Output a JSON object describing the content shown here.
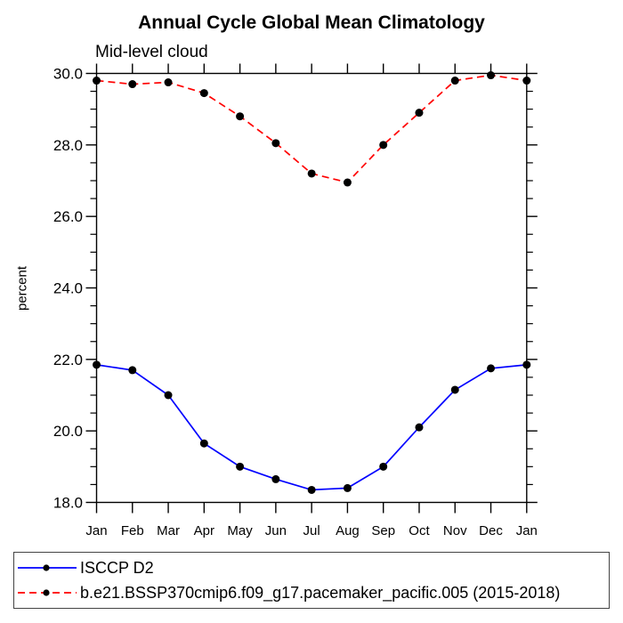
{
  "chart_data": {
    "type": "line",
    "title": "Annual Cycle Global Mean Climatology",
    "subtitle": "Mid-level cloud",
    "xlabel": "",
    "ylabel": "percent",
    "categories": [
      "Jan",
      "Feb",
      "Mar",
      "Apr",
      "May",
      "Jun",
      "Jul",
      "Aug",
      "Sep",
      "Oct",
      "Nov",
      "Dec",
      "Jan"
    ],
    "ylim": [
      18.0,
      30.0
    ],
    "ytick_major_values": [
      18,
      20,
      22,
      24,
      26,
      28,
      30
    ],
    "ytick_major_labels": [
      "18.0",
      "20.0",
      "22.0",
      "24.0",
      "26.0",
      "28.0",
      "30.0"
    ],
    "ytick_minor_step": 0.5,
    "grid": false,
    "legend_position": "bottom",
    "frame_color": "#000000",
    "marker_shape": "filled-circle",
    "series": [
      {
        "name": "ISCCP D2",
        "color": "#0000ff",
        "line_style": "solid",
        "marker_color": "#000000",
        "values": [
          21.85,
          21.7,
          21.0,
          19.65,
          19.0,
          18.65,
          18.35,
          18.4,
          19.0,
          20.1,
          21.15,
          21.75,
          21.85
        ]
      },
      {
        "name": "b.e21.BSSP370cmip6.f09_g17.pacemaker_pacific.005 (2015-2018)",
        "color": "#ff0000",
        "line_style": "dashed",
        "marker_color": "#000000",
        "values": [
          29.8,
          29.7,
          29.75,
          29.45,
          28.8,
          28.05,
          27.2,
          26.95,
          28.0,
          28.9,
          29.8,
          29.95,
          29.8
        ]
      }
    ]
  }
}
